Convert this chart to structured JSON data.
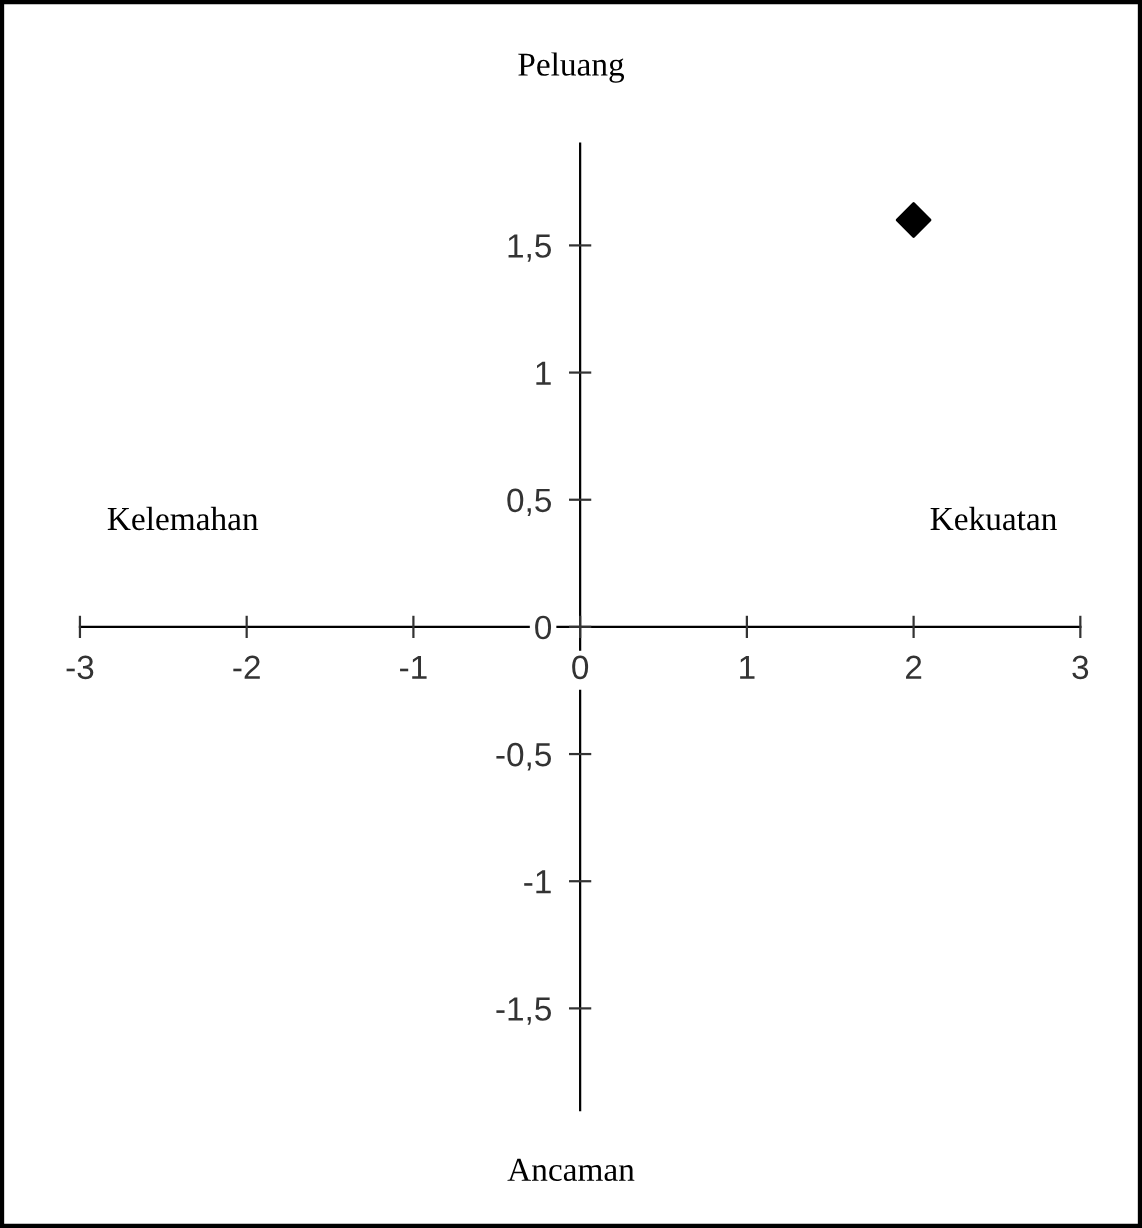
{
  "chart_data": {
    "type": "scatter",
    "x": [
      2
    ],
    "values": [
      1.6
    ],
    "color": "#000000",
    "marker": "diamond",
    "grid": false,
    "legend": false,
    "xlim": [
      -3,
      3
    ],
    "xticks": [
      -3,
      -2,
      -1,
      0,
      1,
      2,
      3
    ],
    "ylim": [
      -1.9,
      1.9
    ],
    "yticks": [
      {
        "value": -1.5,
        "label": "-1,5"
      },
      -1,
      {
        "value": -0.5,
        "label": "-0,5"
      },
      0,
      {
        "value": 0.5,
        "label": "0,5"
      },
      1,
      {
        "value": 1.5,
        "label": "1,5"
      }
    ],
    "annotations": [
      "Peluang",
      "Kekuatan",
      "Ancaman",
      "Kelemahan"
    ]
  }
}
